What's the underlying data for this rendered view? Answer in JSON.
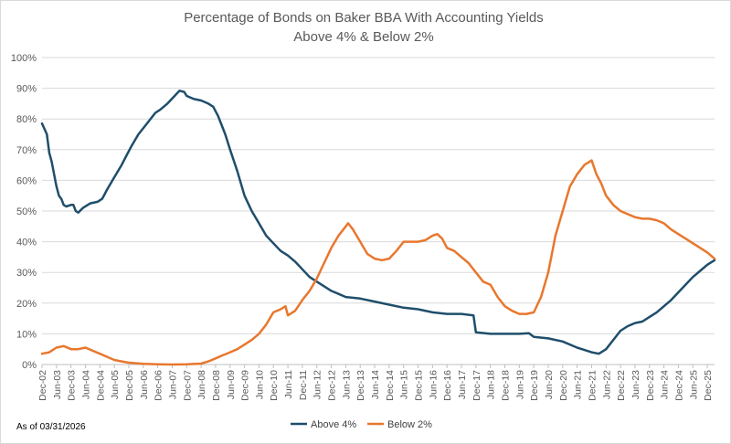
{
  "chart_data": {
    "type": "line",
    "title": "Percentage of Bonds on Baker BBA With Accounting Yields",
    "subtitle": "Above 4% & Below 2%",
    "ylim": [
      0,
      100
    ],
    "y_ticks": [
      "0%",
      "10%",
      "20%",
      "30%",
      "40%",
      "50%",
      "60%",
      "70%",
      "80%",
      "90%",
      "100%"
    ],
    "x_ticks": [
      "Dec-02",
      "Jun-03",
      "Dec-03",
      "Jun-04",
      "Dec-04",
      "Jun-05",
      "Dec-05",
      "Jun-06",
      "Dec-06",
      "Jun-07",
      "Dec-07",
      "Jun-08",
      "Dec-08",
      "Jun-09",
      "Dec-09",
      "Jun-10",
      "Dec-10",
      "Jun-11",
      "Dec-11",
      "Jun-12",
      "Dec-12",
      "Jun-13",
      "Dec-13",
      "Jun-14",
      "Dec-14",
      "Jun-15",
      "Dec-15",
      "Jun-16",
      "Dec-16",
      "Jun-17",
      "Dec-17",
      "Jun-18",
      "Dec-18",
      "Jun-19",
      "Dec-19",
      "Jun-20",
      "Dec-20",
      "Jun-21",
      "Dec-21",
      "Jun-22",
      "Dec-22",
      "Jun-23",
      "Dec-23",
      "Jun-24",
      "Dec-24",
      "Jun-25",
      "Dec-25"
    ],
    "grid": true,
    "legend": "bottom",
    "series": [
      {
        "name": "Above 4%",
        "color": "#1f4e6b",
        "points": [
          [
            "2002-12",
            78.5
          ],
          [
            "2003-02",
            75
          ],
          [
            "2003-03",
            69
          ],
          [
            "2003-04",
            66
          ],
          [
            "2003-05",
            62
          ],
          [
            "2003-06",
            58
          ],
          [
            "2003-07",
            55
          ],
          [
            "2003-08",
            54
          ],
          [
            "2003-09",
            52
          ],
          [
            "2003-10",
            51.5
          ],
          [
            "2003-12",
            52
          ],
          [
            "2004-01",
            52
          ],
          [
            "2004-02",
            50
          ],
          [
            "2004-03",
            49.5
          ],
          [
            "2004-05",
            51
          ],
          [
            "2004-08",
            52.5
          ],
          [
            "2004-11",
            53
          ],
          [
            "2005-01",
            54
          ],
          [
            "2005-03",
            57
          ],
          [
            "2005-06",
            61
          ],
          [
            "2005-09",
            65
          ],
          [
            "2005-11",
            68
          ],
          [
            "2006-01",
            71
          ],
          [
            "2006-04",
            75
          ],
          [
            "2006-08",
            79
          ],
          [
            "2006-11",
            82
          ],
          [
            "2007-01",
            83
          ],
          [
            "2007-04",
            85
          ],
          [
            "2007-07",
            87.5
          ],
          [
            "2007-09",
            89.2
          ],
          [
            "2007-11",
            88.8
          ],
          [
            "2007-12",
            87.5
          ],
          [
            "2008-03",
            86.5
          ],
          [
            "2008-06",
            86
          ],
          [
            "2008-09",
            85
          ],
          [
            "2008-11",
            84
          ],
          [
            "2009-01",
            81
          ],
          [
            "2009-04",
            75
          ],
          [
            "2009-06",
            70
          ],
          [
            "2009-09",
            63
          ],
          [
            "2009-12",
            55
          ],
          [
            "2010-03",
            50
          ],
          [
            "2010-06",
            46
          ],
          [
            "2010-09",
            42
          ],
          [
            "2010-12",
            39.5
          ],
          [
            "2011-03",
            37
          ],
          [
            "2011-06",
            35.5
          ],
          [
            "2011-09",
            33.5
          ],
          [
            "2011-12",
            31
          ],
          [
            "2012-03",
            28.5
          ],
          [
            "2012-06",
            27
          ],
          [
            "2012-09",
            25.5
          ],
          [
            "2012-12",
            24
          ],
          [
            "2013-03",
            23
          ],
          [
            "2013-06",
            22
          ],
          [
            "2013-12",
            21.5
          ],
          [
            "2014-06",
            20.5
          ],
          [
            "2014-12",
            19.5
          ],
          [
            "2015-06",
            18.5
          ],
          [
            "2015-12",
            18
          ],
          [
            "2016-06",
            17
          ],
          [
            "2016-12",
            16.5
          ],
          [
            "2017-06",
            16.5
          ],
          [
            "2017-11",
            16
          ],
          [
            "2017-12",
            10.5
          ],
          [
            "2018-06",
            10
          ],
          [
            "2018-12",
            10
          ],
          [
            "2019-06",
            10
          ],
          [
            "2019-10",
            10.2
          ],
          [
            "2019-12",
            9
          ],
          [
            "2020-06",
            8.5
          ],
          [
            "2020-12",
            7.5
          ],
          [
            "2021-06",
            5.5
          ],
          [
            "2021-12",
            4
          ],
          [
            "2022-03",
            3.5
          ],
          [
            "2022-06",
            5
          ],
          [
            "2022-09",
            8
          ],
          [
            "2022-12",
            11
          ],
          [
            "2023-03",
            12.5
          ],
          [
            "2023-06",
            13.5
          ],
          [
            "2023-09",
            14
          ],
          [
            "2023-12",
            15.5
          ],
          [
            "2024-03",
            17
          ],
          [
            "2024-06",
            19
          ],
          [
            "2024-09",
            21
          ],
          [
            "2024-12",
            23.5
          ],
          [
            "2025-03",
            26
          ],
          [
            "2025-06",
            28.5
          ],
          [
            "2025-09",
            30.5
          ],
          [
            "2025-12",
            32.5
          ],
          [
            "2026-03",
            34
          ]
        ]
      },
      {
        "name": "Below 2%",
        "color": "#e8772e",
        "points": [
          [
            "2002-12",
            3.5
          ],
          [
            "2003-03",
            4
          ],
          [
            "2003-06",
            5.5
          ],
          [
            "2003-09",
            6
          ],
          [
            "2003-12",
            5
          ],
          [
            "2004-03",
            5
          ],
          [
            "2004-06",
            5.5
          ],
          [
            "2004-09",
            4.5
          ],
          [
            "2004-12",
            3.5
          ],
          [
            "2005-03",
            2.5
          ],
          [
            "2005-06",
            1.5
          ],
          [
            "2005-09",
            1
          ],
          [
            "2005-12",
            0.6
          ],
          [
            "2006-06",
            0.2
          ],
          [
            "2006-12",
            0.1
          ],
          [
            "2007-06",
            0
          ],
          [
            "2007-12",
            0.1
          ],
          [
            "2008-06",
            0.3
          ],
          [
            "2008-09",
            1
          ],
          [
            "2008-12",
            2
          ],
          [
            "2009-03",
            3
          ],
          [
            "2009-06",
            4
          ],
          [
            "2009-09",
            5
          ],
          [
            "2009-12",
            6.5
          ],
          [
            "2010-03",
            8
          ],
          [
            "2010-06",
            10
          ],
          [
            "2010-09",
            13
          ],
          [
            "2010-12",
            17
          ],
          [
            "2011-03",
            18
          ],
          [
            "2011-05",
            19
          ],
          [
            "2011-06",
            16
          ],
          [
            "2011-09",
            17.5
          ],
          [
            "2011-12",
            21
          ],
          [
            "2012-03",
            24
          ],
          [
            "2012-06",
            28
          ],
          [
            "2012-09",
            33
          ],
          [
            "2012-12",
            38
          ],
          [
            "2013-03",
            42
          ],
          [
            "2013-06",
            45
          ],
          [
            "2013-07",
            46
          ],
          [
            "2013-09",
            44
          ],
          [
            "2013-12",
            40
          ],
          [
            "2014-03",
            36
          ],
          [
            "2014-06",
            34.5
          ],
          [
            "2014-09",
            34
          ],
          [
            "2014-12",
            34.5
          ],
          [
            "2015-03",
            37
          ],
          [
            "2015-06",
            40
          ],
          [
            "2015-09",
            40
          ],
          [
            "2015-12",
            40
          ],
          [
            "2016-03",
            40.5
          ],
          [
            "2016-06",
            42
          ],
          [
            "2016-08",
            42.5
          ],
          [
            "2016-10",
            41
          ],
          [
            "2016-12",
            38
          ],
          [
            "2017-03",
            37
          ],
          [
            "2017-06",
            35
          ],
          [
            "2017-09",
            33
          ],
          [
            "2017-12",
            30
          ],
          [
            "2018-03",
            27
          ],
          [
            "2018-06",
            26
          ],
          [
            "2018-09",
            22
          ],
          [
            "2018-12",
            19
          ],
          [
            "2019-03",
            17.5
          ],
          [
            "2019-06",
            16.5
          ],
          [
            "2019-09",
            16.5
          ],
          [
            "2019-12",
            17
          ],
          [
            "2020-03",
            22
          ],
          [
            "2020-06",
            30
          ],
          [
            "2020-09",
            42
          ],
          [
            "2020-12",
            50
          ],
          [
            "2021-03",
            58
          ],
          [
            "2021-06",
            62
          ],
          [
            "2021-09",
            65
          ],
          [
            "2021-12",
            66.5
          ],
          [
            "2022-02",
            62
          ],
          [
            "2022-04",
            59
          ],
          [
            "2022-06",
            55
          ],
          [
            "2022-09",
            52
          ],
          [
            "2022-12",
            50
          ],
          [
            "2023-03",
            49
          ],
          [
            "2023-06",
            48
          ],
          [
            "2023-09",
            47.5
          ],
          [
            "2023-12",
            47.5
          ],
          [
            "2024-03",
            47
          ],
          [
            "2024-06",
            46
          ],
          [
            "2024-09",
            44
          ],
          [
            "2024-12",
            42.5
          ],
          [
            "2025-03",
            41
          ],
          [
            "2025-06",
            39.5
          ],
          [
            "2025-09",
            38
          ],
          [
            "2025-12",
            36.5
          ],
          [
            "2026-03",
            34.5
          ]
        ]
      }
    ]
  },
  "footnote": "As of 03/31/2026"
}
